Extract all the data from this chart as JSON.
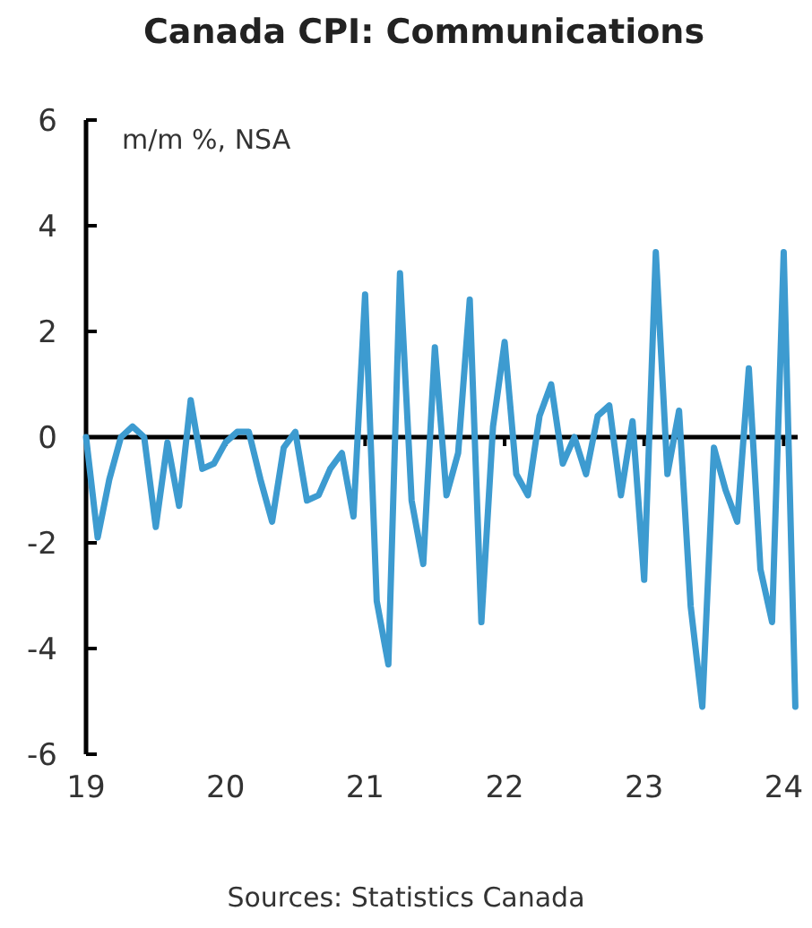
{
  "chart_data": {
    "type": "line",
    "title": "Canada CPI: Communications",
    "ylabel": "m/m %, NSA",
    "annotations": [
      "Sources: Statistics Canada"
    ],
    "x": [
      2019,
      2019.0833,
      2019.1667,
      2019.25,
      2019.3333,
      2019.4167,
      2019.5,
      2019.5833,
      2019.6667,
      2019.75,
      2019.8333,
      2019.9167,
      2020,
      2020.0833,
      2020.1667,
      2020.25,
      2020.3333,
      2020.4167,
      2020.5,
      2020.5833,
      2020.6667,
      2020.75,
      2020.8333,
      2020.9167,
      2021,
      2021.0833,
      2021.1667,
      2021.25,
      2021.3333,
      2021.4167,
      2021.5,
      2021.5833,
      2021.6667,
      2021.75,
      2021.8333,
      2021.9167,
      2022,
      2022.0833,
      2022.1667,
      2022.25,
      2022.3333,
      2022.4167,
      2022.5,
      2022.5833,
      2022.6667,
      2022.75,
      2022.8333,
      2022.9167,
      2023,
      2023.0833,
      2023.1667,
      2023.25,
      2023.3333,
      2023.4167,
      2023.5,
      2023.5833,
      2023.6667,
      2023.75,
      2023.8333,
      2023.9167,
      2024,
      2024.0833
    ],
    "series": [
      {
        "color": "#3d9bd0",
        "values": [
          0.0,
          -1.9,
          -0.8,
          0.0,
          0.2,
          0.0,
          -1.7,
          -0.1,
          -1.3,
          0.7,
          -0.6,
          -0.5,
          -0.1,
          0.1,
          0.1,
          -0.8,
          -1.6,
          -0.2,
          0.1,
          -1.2,
          -1.1,
          -0.6,
          -0.3,
          -1.5,
          2.7,
          -3.1,
          -4.3,
          3.1,
          -1.2,
          -2.4,
          1.7,
          -1.1,
          -0.3,
          2.6,
          -3.5,
          0.2,
          1.8,
          -0.7,
          -1.1,
          0.4,
          1.0,
          -0.5,
          0.0,
          -0.7,
          0.4,
          0.6,
          -1.1,
          0.3,
          -2.7,
          3.5,
          -0.7,
          0.5,
          -3.2,
          -5.1,
          -0.2,
          -1.0,
          -1.6,
          1.3,
          -2.5,
          -3.5,
          3.5,
          -5.1
        ]
      }
    ],
    "xlim": [
      2019,
      2024.1
    ],
    "xticks": [
      {
        "value": 2019,
        "label": "19"
      },
      {
        "value": 2020,
        "label": "20"
      },
      {
        "value": 2021,
        "label": "21"
      },
      {
        "value": 2022,
        "label": "22"
      },
      {
        "value": 2023,
        "label": "23"
      },
      {
        "value": 2024,
        "label": "24"
      }
    ],
    "ylim": [
      -6,
      6
    ],
    "yticks": [
      -6,
      -4,
      -2,
      0,
      2,
      4,
      6
    ],
    "ref_lines": [
      {
        "axis": "y",
        "value": 0,
        "color": "#000000"
      }
    ],
    "marker": "none",
    "line_style": "solid"
  }
}
